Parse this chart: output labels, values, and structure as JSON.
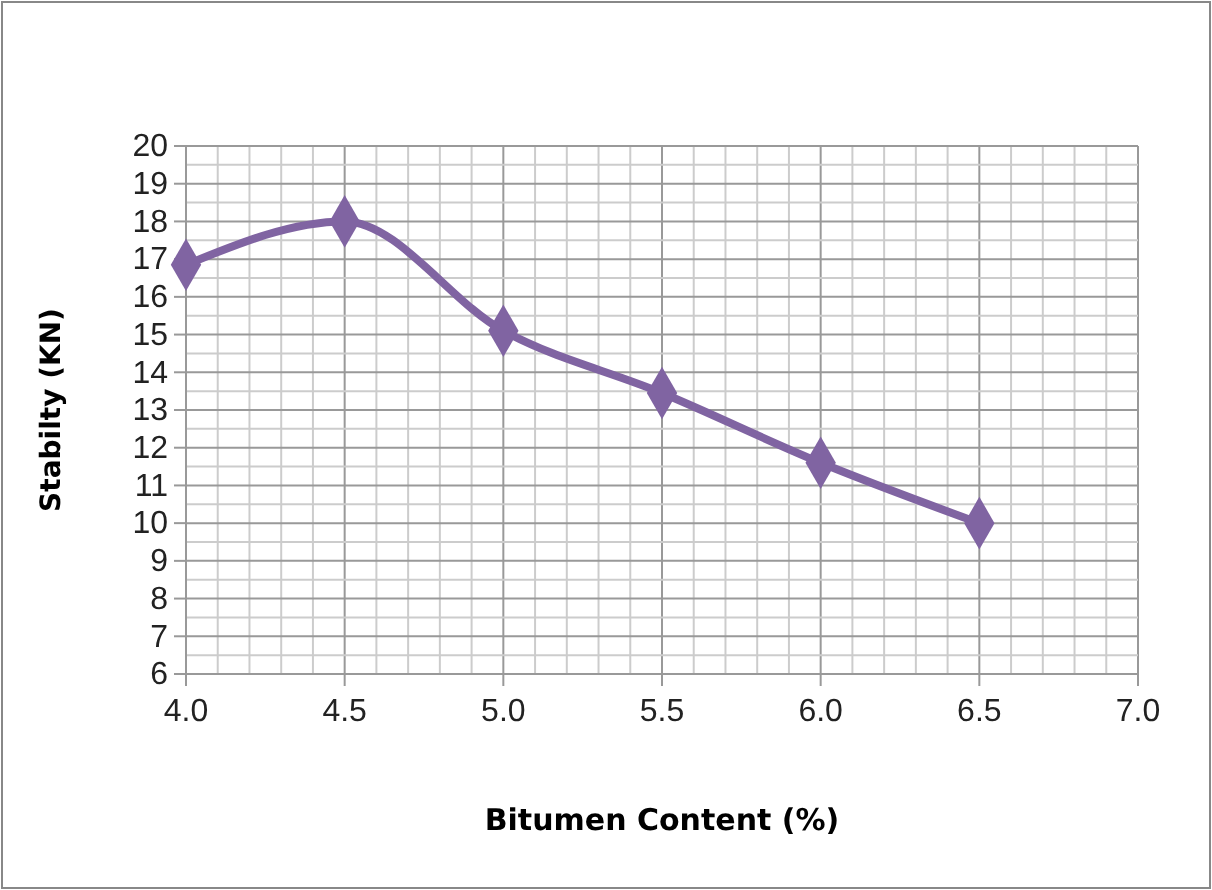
{
  "chart_data": {
    "type": "line",
    "xlabel": "Bitumen Content (%)",
    "ylabel": "Stabilty (KN)",
    "x": [
      4.0,
      4.5,
      5.0,
      5.5,
      6.0,
      6.5
    ],
    "series": [
      {
        "color": "#8064a2",
        "values": [
          16.85,
          18.0,
          15.1,
          13.45,
          11.6,
          10.0
        ]
      }
    ],
    "xlim": [
      4.0,
      7.0
    ],
    "xticks": [
      {
        "value": 4,
        "label": "4.0"
      },
      {
        "value": 4.5,
        "label": "4.5"
      },
      {
        "value": 5,
        "label": "5.0"
      },
      {
        "value": 5.5,
        "label": "5.5"
      },
      {
        "value": 6,
        "label": "6.0"
      },
      {
        "value": 6.5,
        "label": "6.5"
      },
      {
        "value": 7,
        "label": "7.0"
      }
    ],
    "ylim": [
      6,
      20
    ],
    "yticks": [
      6,
      7,
      8,
      9,
      10,
      11,
      12,
      13,
      14,
      15,
      16,
      17,
      18,
      19,
      20
    ],
    "grid": true,
    "marker": "diamond",
    "line_style": "solid"
  }
}
